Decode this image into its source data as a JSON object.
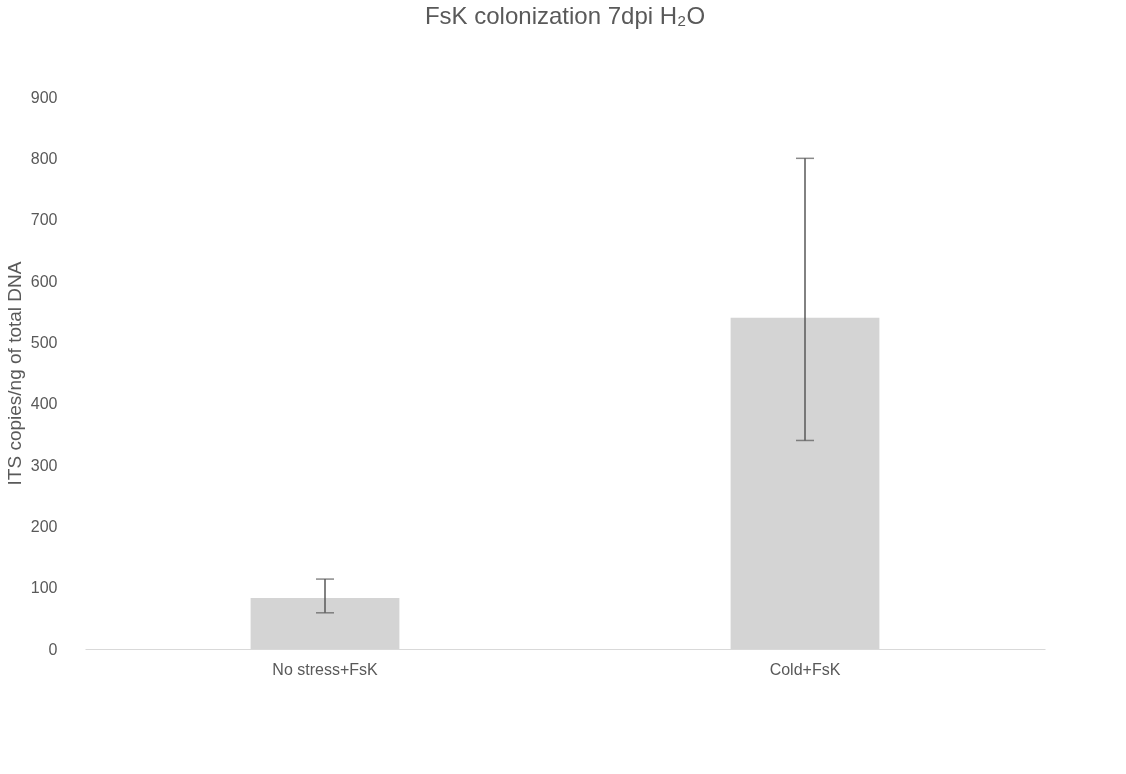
{
  "chart_data": {
    "type": "bar",
    "title": "FsK colonization 7dpi H₂O",
    "ylabel": "ITS copies/ng of total DNA",
    "categories": [
      "No stress+FsK",
      "Cold+FsK"
    ],
    "values": [
      83,
      540
    ],
    "errors": [
      [
        59,
        114
      ],
      [
        340,
        800
      ]
    ],
    "color": "#d4d4d4",
    "ylim": [
      0,
      900
    ],
    "yticks": [
      0,
      100,
      200,
      300,
      400,
      500,
      600,
      700,
      800,
      900
    ],
    "grid": false
  }
}
